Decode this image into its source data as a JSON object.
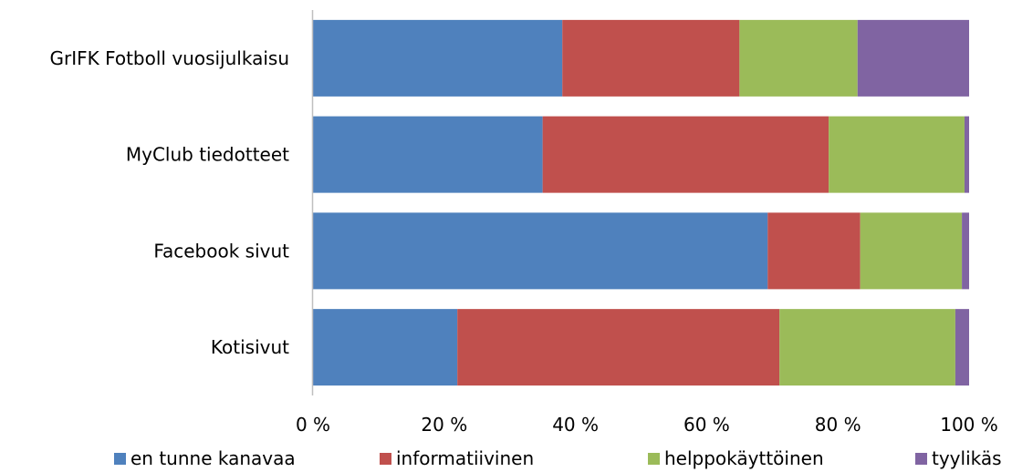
{
  "chart_data": {
    "type": "bar",
    "orientation": "horizontal",
    "stacked": "percent",
    "categories": [
      "GrIFK Fotboll vuosijulkaisu",
      "MyClub tiedotteet",
      "Facebook sivut",
      "Kotisivut"
    ],
    "series": [
      {
        "name": "en tunne kanavaa",
        "color": "#4F81BD",
        "values": [
          38,
          35,
          69.3,
          22
        ]
      },
      {
        "name": "informatiivinen",
        "color": "#C0504D",
        "values": [
          27,
          43.6,
          14.1,
          49.1
        ]
      },
      {
        "name": "helppokäyttöinen",
        "color": "#9BBB59",
        "values": [
          18,
          20.7,
          15.5,
          26.8
        ]
      },
      {
        "name": "tyylikäs",
        "color": "#8064A2",
        "values": [
          17,
          0.7,
          1.1,
          2.1
        ]
      }
    ],
    "xticks": [
      "0 %",
      "20 %",
      "40 %",
      "60 %",
      "80 %",
      "100 %"
    ],
    "xlim": [
      0,
      100
    ],
    "legend_position": "bottom",
    "grid": false
  }
}
